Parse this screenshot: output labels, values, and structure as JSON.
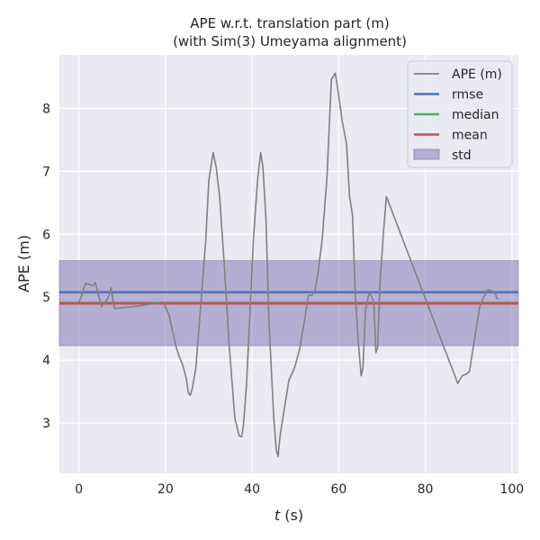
{
  "chart_data": {
    "type": "line",
    "title": "APE w.r.t. translation part (m)",
    "subtitle": "(with Sim(3) Umeyama alignment)",
    "xlabel_var": "t",
    "xlabel_unit": " (s)",
    "ylabel": "APE (m)",
    "xlim": [
      -4.5,
      101.5
    ],
    "ylim": [
      2.2,
      8.85
    ],
    "xticks": [
      0,
      20,
      40,
      60,
      80,
      100
    ],
    "yticks": [
      3,
      4,
      5,
      6,
      7,
      8
    ],
    "grid": true,
    "legend_position": "top-right",
    "series": [
      {
        "name": "APE (m)",
        "color": "#808080",
        "x": [
          0,
          0.5,
          1.5,
          2.5,
          3.3,
          3.8,
          4.3,
          5.2,
          6.2,
          7,
          7.4,
          8.2,
          14,
          19,
          19.5,
          20.8,
          22.5,
          23.2,
          24,
          24.8,
          25.3,
          25.7,
          26.2,
          27,
          28,
          29.3,
          30,
          31,
          31.7,
          32.5,
          33.5,
          34.7,
          36,
          37,
          37.6,
          38,
          38.7,
          39.5,
          40.3,
          41.3,
          42,
          42.5,
          43.2,
          43.9,
          45,
          45.6,
          46,
          46.5,
          47.5,
          48.5,
          49.5,
          50,
          51,
          52,
          53,
          53.8,
          54.5,
          55.2,
          56.2,
          57.3,
          58.3,
          59.2,
          59.6,
          60.2,
          60.8,
          61.8,
          62.5,
          63.2,
          63.8,
          64.5,
          65.2,
          65.6,
          66.2,
          67,
          67.5,
          68.1,
          68.6,
          69,
          69.5,
          70.3,
          71,
          87.5,
          88.5,
          89.5,
          90.2,
          91.3,
          92.6,
          93.5,
          94.4,
          95.3,
          96.2,
          96.5,
          97
        ],
        "y": [
          4.92,
          5.0,
          5.22,
          5.2,
          5.18,
          5.23,
          5.1,
          4.85,
          4.93,
          5.03,
          5.15,
          4.82,
          4.86,
          4.92,
          4.92,
          4.72,
          4.2,
          4.05,
          3.92,
          3.7,
          3.48,
          3.44,
          3.55,
          3.88,
          4.75,
          5.9,
          6.85,
          7.3,
          7.07,
          6.6,
          5.6,
          4.25,
          3.08,
          2.8,
          2.78,
          2.97,
          3.58,
          4.75,
          5.9,
          6.9,
          7.3,
          7.07,
          6.25,
          4.6,
          3.08,
          2.57,
          2.47,
          2.82,
          3.25,
          3.68,
          3.83,
          3.92,
          4.18,
          4.58,
          5.03,
          5.03,
          5.1,
          5.37,
          5.92,
          6.9,
          8.46,
          8.56,
          8.4,
          8.1,
          7.8,
          7.44,
          6.6,
          6.3,
          5.1,
          4.3,
          3.75,
          3.88,
          4.8,
          5.07,
          5.02,
          4.93,
          4.12,
          4.2,
          5.15,
          6.0,
          6.6,
          3.63,
          3.75,
          3.78,
          3.82,
          4.3,
          4.85,
          5.0,
          5.12,
          5.1,
          5.05,
          4.98,
          4.98
        ]
      },
      {
        "name": "rmse",
        "color": "#4c72b0",
        "value": 5.08
      },
      {
        "name": "median",
        "color": "#55a868",
        "value": 4.91
      },
      {
        "name": "mean",
        "color": "#c44e52",
        "value": 4.9
      },
      {
        "name": "std",
        "color": "#8172b2",
        "range": [
          4.23,
          5.58
        ]
      }
    ]
  }
}
